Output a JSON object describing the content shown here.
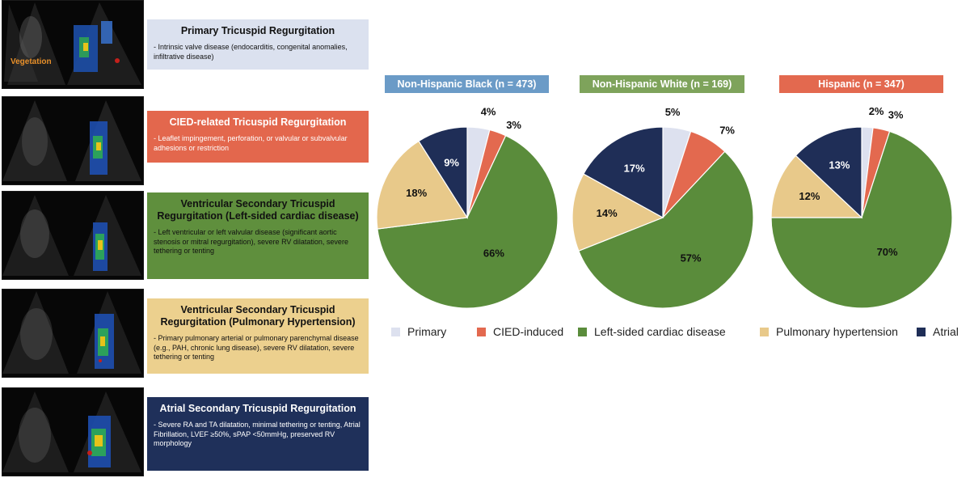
{
  "colors": {
    "primary": "#dde1ef",
    "cied": "#e3694f",
    "left": "#5a8c3b",
    "pulm": "#e8c98a",
    "atrial": "#1f2e57"
  },
  "echo_images": [
    {
      "label": "Vegetation"
    },
    {
      "label": ""
    },
    {
      "label": ""
    },
    {
      "label": ""
    },
    {
      "label": ""
    }
  ],
  "categories": [
    {
      "title": "Primary Tricuspid Regurgitation",
      "desc": "- Intrinsic valve disease (endocarditis, congenital anomalies, infiltrative disease)",
      "bg": "#dbe1ef",
      "fg": "#111111"
    },
    {
      "title": "CIED-related Tricuspid Regurgitation",
      "desc": "- Leaflet impingement, perforation, or valvular or subvalvular adhesions or restriction",
      "bg": "#e3674d",
      "fg": "#ffffff"
    },
    {
      "title": "Ventricular Secondary Tricuspid Regurgitation (Left-sided cardiac disease)",
      "desc": "- Left ventricular or left valvular disease (significant aortic stenosis or mitral regurgitation), severe RV dilatation, severe tethering or tenting",
      "bg": "#5f8f3d",
      "fg": "#111111"
    },
    {
      "title": "Ventricular Secondary Tricuspid Regurgitation (Pulmonary Hypertension)",
      "desc": "- Primary pulmonary arterial or pulmonary parenchymal disease (e.g., PAH, chronic lung disease), severe RV dilatation, severe tethering or tenting",
      "bg": "#ecd08e",
      "fg": "#111111"
    },
    {
      "title": "Atrial Secondary Tricuspid Regurgitation",
      "desc": "- Severe RA and TA dilatation, minimal tethering or tenting, Atrial Fibrillation, LVEF ≥50%, sPAP <50mmHg, preserved RV morphology",
      "bg": "#1f305a",
      "fg": "#ffffff"
    }
  ],
  "chart_data": [
    {
      "type": "pie",
      "title": "Non-Hispanic Black (n = 473)",
      "title_bg": "#6b9bc7",
      "labels": [
        "Primary",
        "CIED-induced",
        "Left-sided cardiac disease",
        "Pulmonary hypertension",
        "Atrial"
      ],
      "values": [
        4,
        3,
        66,
        18,
        9
      ],
      "value_labels": [
        "4%",
        "3%",
        "66%",
        "18%",
        "9%"
      ]
    },
    {
      "type": "pie",
      "title": "Non-Hispanic White (n = 169)",
      "title_bg": "#7ea35b",
      "labels": [
        "Primary",
        "CIED-induced",
        "Left-sided cardiac disease",
        "Pulmonary hypertension",
        "Atrial"
      ],
      "values": [
        5,
        7,
        57,
        14,
        17
      ],
      "value_labels": [
        "5%",
        "7%",
        "57%",
        "14%",
        "17%"
      ]
    },
    {
      "type": "pie",
      "title": "Hispanic (n = 347)",
      "title_bg": "#e3694f",
      "labels": [
        "Primary",
        "CIED-induced",
        "Left-sided cardiac disease",
        "Pulmonary hypertension",
        "Atrial"
      ],
      "values": [
        2,
        3,
        70,
        12,
        13
      ],
      "value_labels": [
        "2%",
        "3%",
        "70%",
        "12%",
        "13%"
      ]
    }
  ],
  "legend": [
    {
      "label": "Primary",
      "color": "#dde1ef"
    },
    {
      "label": "CIED-induced",
      "color": "#e3694f"
    },
    {
      "label": "Left-sided cardiac disease",
      "color": "#5a8c3b"
    },
    {
      "label": "Pulmonary hypertension",
      "color": "#e8c98a"
    },
    {
      "label": "Atrial",
      "color": "#1f2e57"
    }
  ]
}
